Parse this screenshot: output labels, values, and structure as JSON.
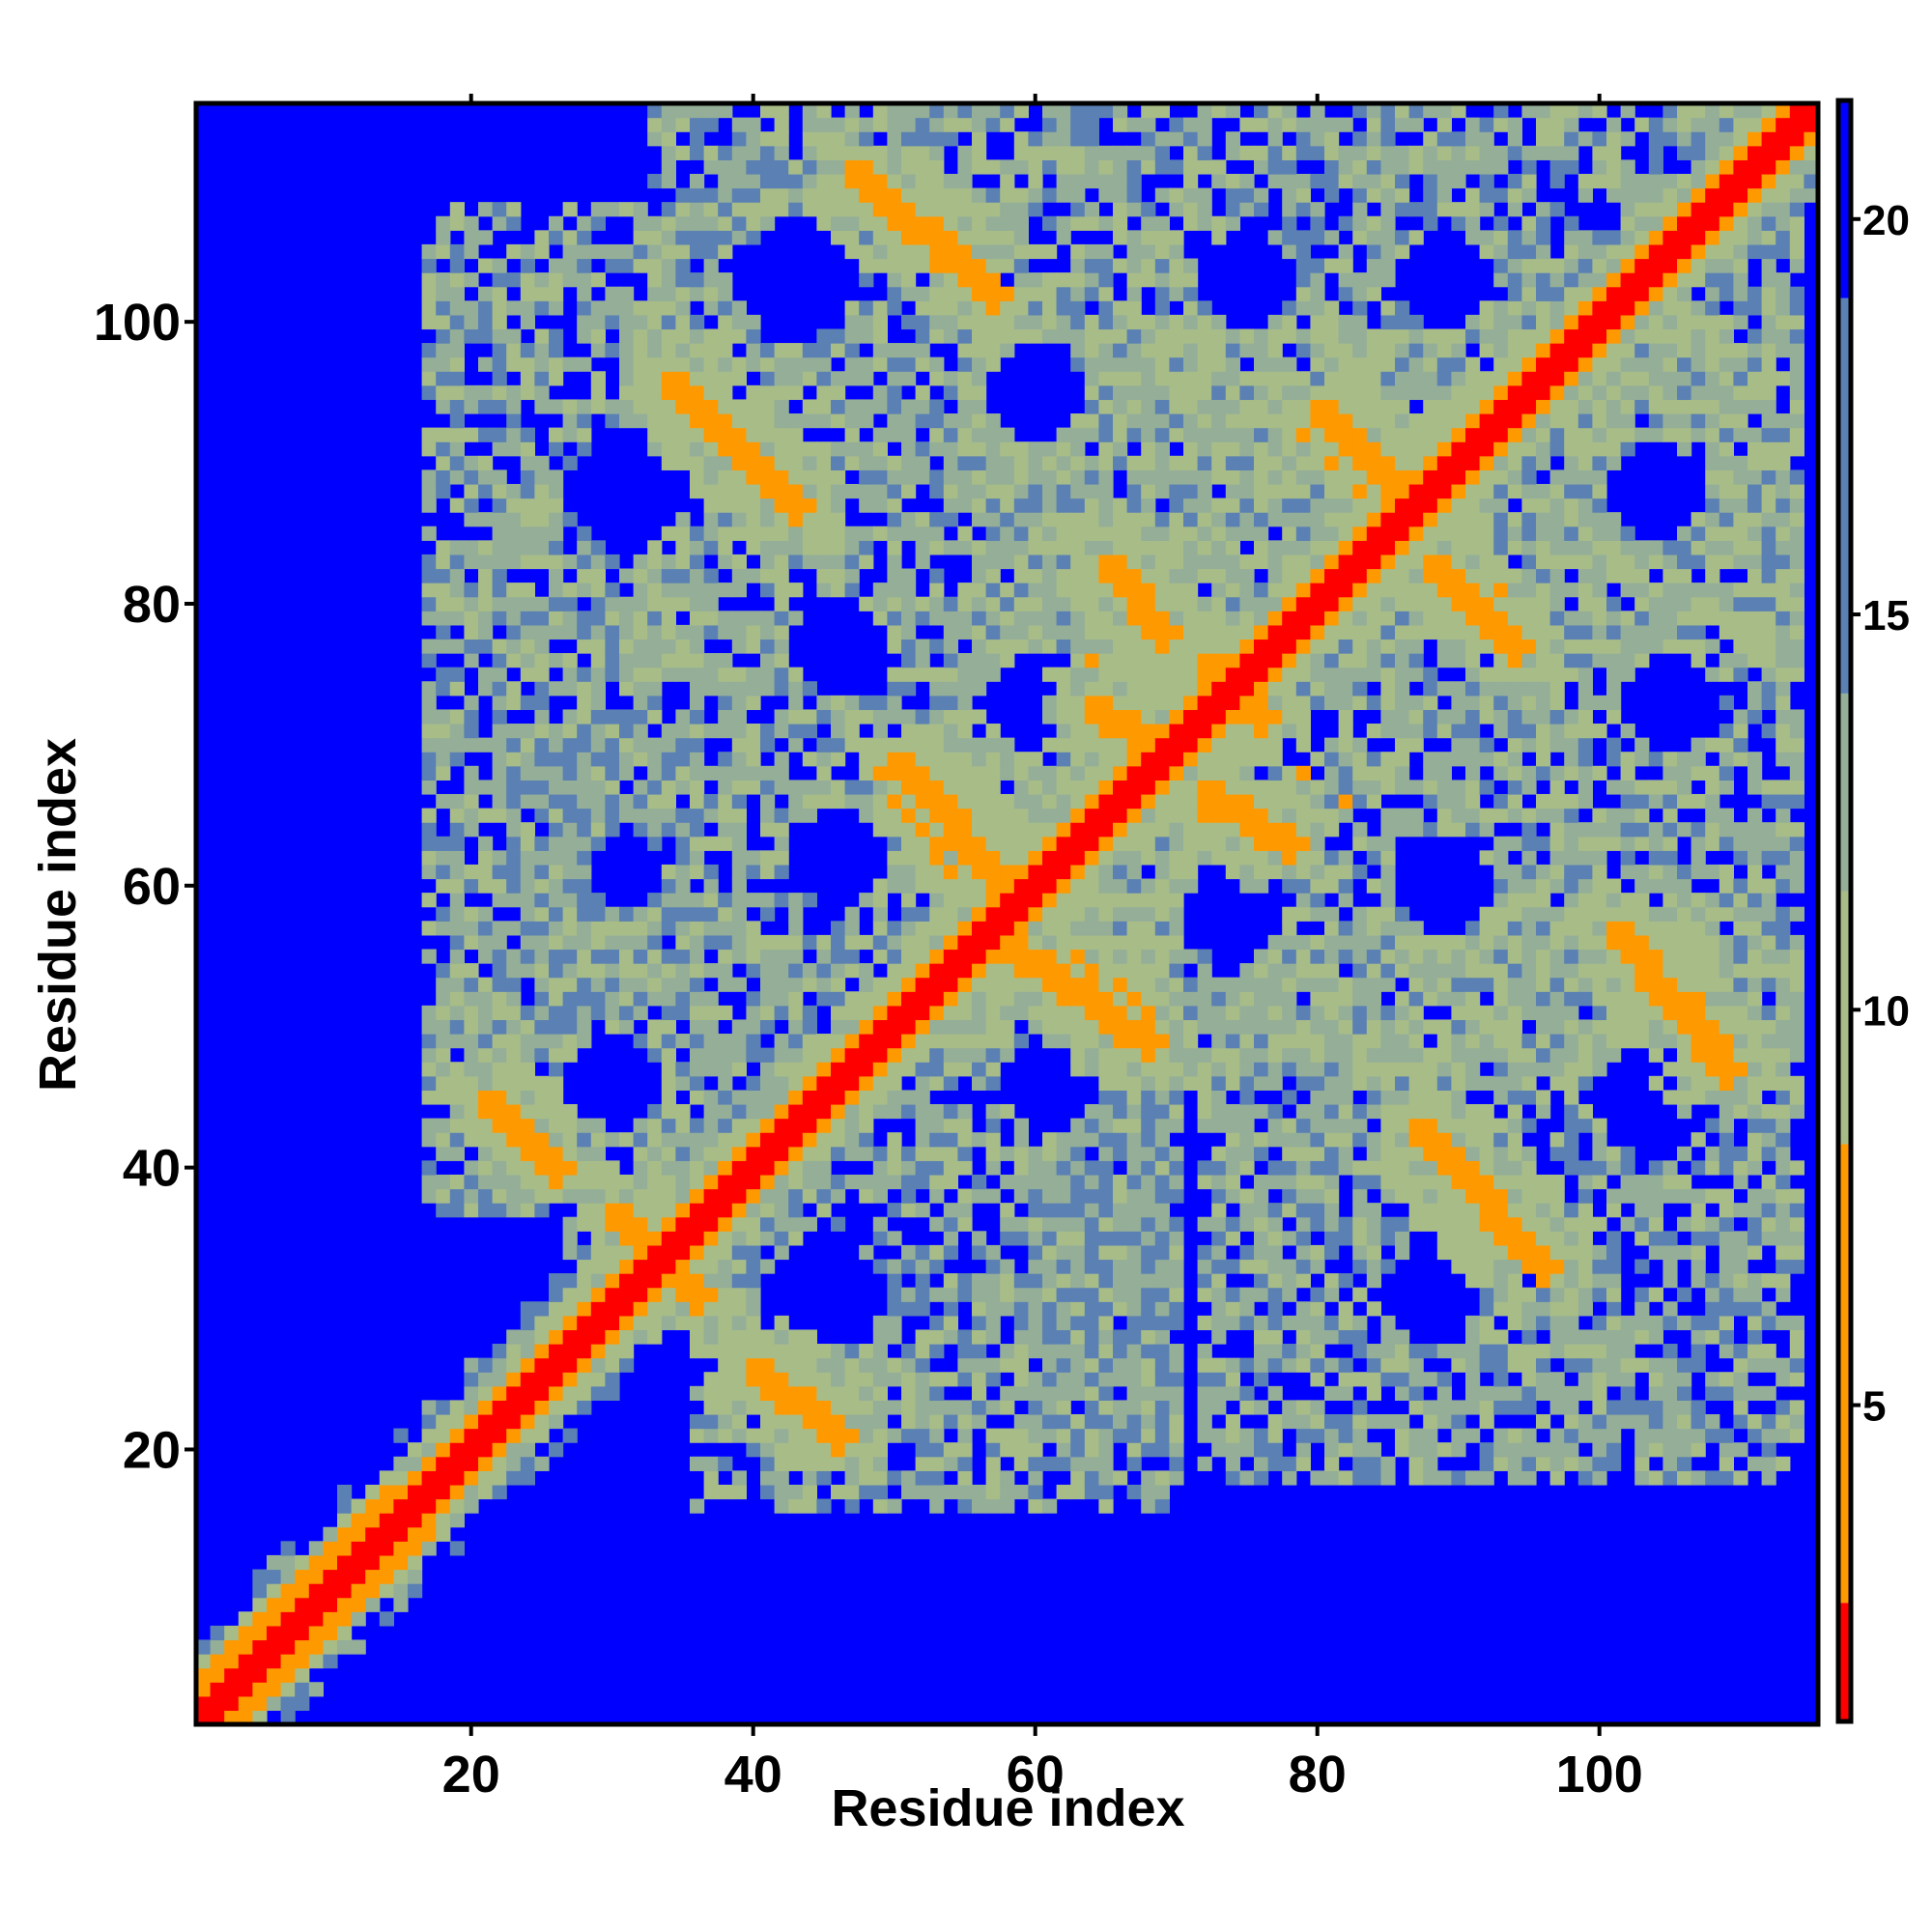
{
  "chart_data": {
    "type": "heatmap",
    "title": "",
    "xlabel": "Residue index",
    "ylabel": "Residue index",
    "x_range": [
      1,
      115
    ],
    "y_range": [
      1,
      115
    ],
    "x_ticks": [
      20,
      40,
      60,
      80,
      100
    ],
    "y_ticks": [
      20,
      40,
      60,
      80,
      100
    ],
    "colorbar": {
      "range": [
        1,
        21.5
      ],
      "ticks": [
        5,
        10,
        15,
        20
      ],
      "colors": {
        "contact": "#ff0000",
        "near": "#ff9900",
        "mid": "#a8bc88",
        "far": "#5a80b4",
        "none": "#0000ff"
      }
    },
    "diagonal": {
      "from": 1,
      "to": 115,
      "value": 1
    },
    "bands": [
      {
        "x0": 21,
        "y0": 45,
        "x1": 26,
        "y1": 40,
        "value": 6
      },
      {
        "x0": 40,
        "y0": 26,
        "x1": 46,
        "y1": 21,
        "value": 6
      },
      {
        "x0": 30,
        "y0": 37,
        "x1": 36,
        "y1": 31,
        "value": 6
      },
      {
        "x0": 34,
        "y0": 96,
        "x1": 43,
        "y1": 87,
        "value": 6
      },
      {
        "x0": 47,
        "y0": 111,
        "x1": 57,
        "y1": 102,
        "value": 6
      },
      {
        "x0": 50,
        "y0": 69,
        "x1": 57,
        "y1": 61,
        "value": 6
      },
      {
        "x0": 58,
        "y0": 56,
        "x1": 68,
        "y1": 49,
        "value": 6
      },
      {
        "x0": 80,
        "y0": 94,
        "x1": 86,
        "y1": 88,
        "value": 6
      },
      {
        "x0": 88,
        "y0": 83,
        "x1": 94,
        "y1": 77,
        "value": 6
      },
      {
        "x0": 87,
        "y0": 43,
        "x1": 96,
        "y1": 33,
        "value": 6
      },
      {
        "x0": 101,
        "y0": 57,
        "x1": 109,
        "y1": 47,
        "value": 6
      },
      {
        "x0": 65,
        "y0": 83,
        "x1": 69,
        "y1": 78,
        "value": 7
      },
      {
        "x0": 72,
        "y0": 76,
        "x1": 76,
        "y1": 72,
        "value": 7
      },
      {
        "x0": 64,
        "y0": 73,
        "x1": 68,
        "y1": 70,
        "value": 7
      },
      {
        "x0": 72,
        "y0": 67,
        "x1": 78,
        "y1": 63,
        "value": 7
      }
    ],
    "voids": [
      {
        "cx": 31,
        "cy": 88,
        "r": 4
      },
      {
        "cx": 43,
        "cy": 103,
        "r": 4
      },
      {
        "cx": 60,
        "cy": 95,
        "r": 3
      },
      {
        "cx": 75,
        "cy": 103,
        "r": 3
      },
      {
        "cx": 89,
        "cy": 103,
        "r": 3
      },
      {
        "cx": 104,
        "cy": 88,
        "r": 3
      },
      {
        "cx": 46,
        "cy": 77,
        "r": 3
      },
      {
        "cx": 60,
        "cy": 73,
        "r": 3
      },
      {
        "cx": 90,
        "cy": 77,
        "r": 2
      },
      {
        "cx": 105,
        "cy": 73,
        "r": 3
      },
      {
        "cx": 46,
        "cy": 62,
        "r": 3
      },
      {
        "cx": 74,
        "cy": 58,
        "r": 3
      },
      {
        "cx": 89,
        "cy": 60,
        "r": 3
      },
      {
        "cx": 30,
        "cy": 46,
        "r": 3
      },
      {
        "cx": 61,
        "cy": 46,
        "r": 3
      },
      {
        "cx": 104,
        "cy": 45,
        "r": 4
      },
      {
        "cx": 45,
        "cy": 31,
        "r": 4
      },
      {
        "cx": 88,
        "cy": 31,
        "r": 3
      },
      {
        "cx": 31,
        "cy": 61,
        "r": 2
      }
    ],
    "regions": [
      {
        "x0": 17,
        "x1": 35,
        "y0": 37,
        "y1": 108,
        "value": 12
      },
      {
        "x0": 33,
        "x1": 114,
        "y0": 75,
        "y1": 115,
        "value": 12
      },
      {
        "x0": 36,
        "x1": 70,
        "y0": 16,
        "y1": 75,
        "value": 12
      },
      {
        "x0": 55,
        "x1": 114,
        "y0": 46,
        "y1": 100,
        "value": 12
      },
      {
        "x0": 72,
        "x1": 114,
        "y0": 18,
        "y1": 58,
        "value": 12
      },
      {
        "x0": 60,
        "x1": 70,
        "y0": 20,
        "y1": 45,
        "value": 17
      },
      {
        "x0": 22,
        "x1": 36,
        "y0": 46,
        "y1": 70,
        "value": 17
      }
    ]
  }
}
